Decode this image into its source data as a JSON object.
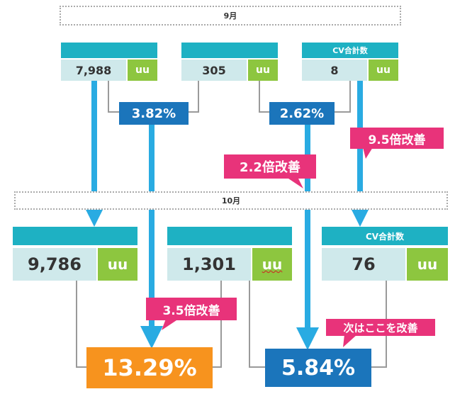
{
  "sep": {
    "sep_month": "9月",
    "oct_month": "10月"
  },
  "sep_metrics": [
    {
      "header": "",
      "value": "7,988",
      "unit": "uu"
    },
    {
      "header": "",
      "value": "305",
      "unit": "uu"
    },
    {
      "header": "CV合計数",
      "value": "8",
      "unit": "uu"
    }
  ],
  "sep_rates": [
    "3.82%",
    "2.62%"
  ],
  "oct_metrics": [
    {
      "header": "",
      "value": "9,786",
      "unit": "uu"
    },
    {
      "header": "",
      "value": "1,301",
      "unit": "uu"
    },
    {
      "header": "CV合計数",
      "value": "76",
      "unit": "uu"
    }
  ],
  "oct_rates": [
    "13.29%",
    "5.84%"
  ],
  "callouts": {
    "cv_improve": "9.5倍改善",
    "rate2_improve": "2.2倍改善",
    "rate1_improve": "3.5倍改善",
    "next_target": "次はここを改善"
  },
  "colors": {
    "header_teal": "#1eb1c3",
    "value_bg": "#cfe9eb",
    "unit_green": "#8dc63f",
    "rate_blue": "#1b75bb",
    "callout_pink": "#e8337a",
    "result_orange": "#f7931e",
    "arrow_cyan": "#29abe2"
  }
}
